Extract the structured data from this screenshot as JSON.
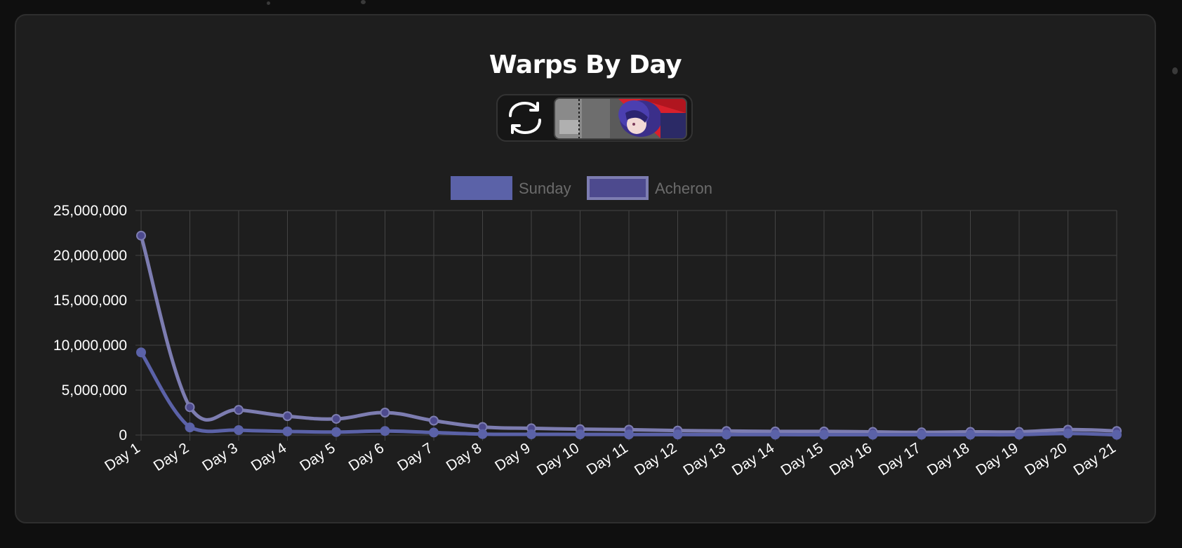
{
  "chart": {
    "title": "Warps By Day"
  },
  "controls": {
    "swap_icon": "swap-icon",
    "banner_icon": "acheron-banner-icon"
  },
  "colors": {
    "background": "#0f0f0f",
    "card": "#1e1e1e",
    "grid": "#444444",
    "axis_text": "#ffffff",
    "legend_text": "#6b6b6b",
    "sunday": "#5b62a8",
    "acheron_fill": "#4d4a8e",
    "acheron_line": "#7d7db1"
  },
  "chart_data": {
    "type": "line",
    "title": "Warps By Day",
    "categories": [
      "Day 1",
      "Day 2",
      "Day 3",
      "Day 4",
      "Day 5",
      "Day 6",
      "Day 7",
      "Day 8",
      "Day 9",
      "Day 10",
      "Day 11",
      "Day 12",
      "Day 13",
      "Day 14",
      "Day 15",
      "Day 16",
      "Day 17",
      "Day 18",
      "Day 19",
      "Day 20",
      "Day 21"
    ],
    "series": [
      {
        "name": "Sunday",
        "color": "#5b62a8",
        "values": [
          9200000,
          850000,
          550000,
          400000,
          330000,
          450000,
          280000,
          100000,
          80000,
          70000,
          60000,
          55000,
          50000,
          45000,
          40000,
          35000,
          35000,
          40000,
          45000,
          180000,
          30000
        ]
      },
      {
        "name": "Acheron",
        "color": "#7d7db1",
        "values": [
          22200000,
          3100000,
          2800000,
          2100000,
          1800000,
          2500000,
          1600000,
          900000,
          750000,
          650000,
          600000,
          500000,
          450000,
          400000,
          400000,
          350000,
          300000,
          350000,
          350000,
          600000,
          450000
        ]
      }
    ],
    "yticks": [
      "0",
      "5,000,000",
      "10,000,000",
      "15,000,000",
      "20,000,000",
      "25,000,000"
    ],
    "ylim": [
      0,
      25000000
    ],
    "grid": true,
    "legend_position": "top-center"
  }
}
